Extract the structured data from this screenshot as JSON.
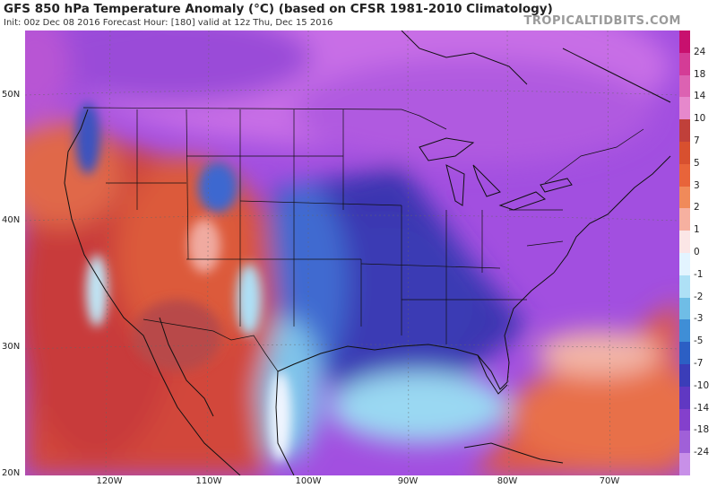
{
  "header": {
    "title": "GFS 850 hPa Temperature Anomaly (°C) (based on CFSR 1981-2010 Climatology)",
    "subtitle": "Init: 00z Dec 08 2016   Forecast Hour: [180]   valid at 12z Thu, Dec 15 2016",
    "brand": "TROPICALTIDBITS.COM"
  },
  "map": {
    "lat_labels": [
      "50N",
      "40N",
      "30N",
      "20N"
    ],
    "lon_labels": [
      "120W",
      "110W",
      "100W",
      "90W",
      "80W",
      "70W"
    ]
  },
  "colorbar": {
    "labels": [
      "24",
      "18",
      "14",
      "10",
      "7",
      "5",
      "3",
      "2",
      "1",
      "0",
      "-1",
      "-2",
      "-3",
      "-5",
      "-7",
      "-10",
      "-14",
      "-18",
      "-24"
    ],
    "colors": [
      "#c8106e",
      "#d43c96",
      "#dc62b2",
      "#e688cc",
      "#c0403a",
      "#d8502f",
      "#e8643a",
      "#f08a5a",
      "#f6b0a0",
      "#fbe6e6",
      "#e3f4ff",
      "#aee0f6",
      "#6fbde6",
      "#3f8ed6",
      "#2c5fc4",
      "#3b3db8",
      "#6038c2",
      "#8440cc",
      "#a060d8",
      "#c890e8"
    ]
  }
}
